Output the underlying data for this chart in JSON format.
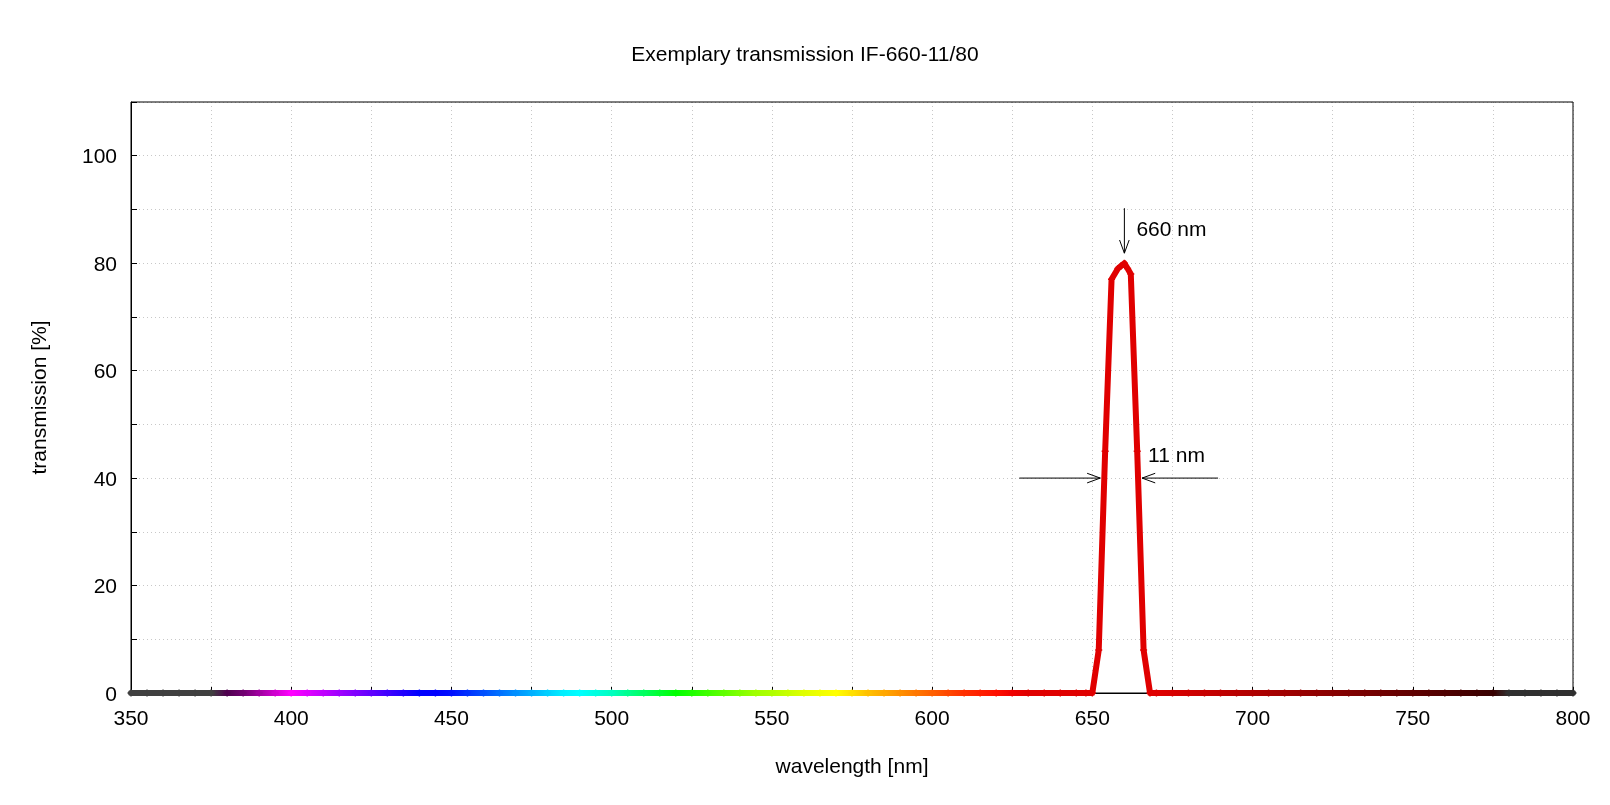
{
  "chart_data": {
    "type": "line",
    "title": "Exemplary transmission IF-660-11/80",
    "xlabel": "wavelength [nm]",
    "ylabel": "transmission [%]",
    "x": [
      350,
      355,
      360,
      365,
      370,
      375,
      380,
      385,
      390,
      395,
      400,
      405,
      410,
      415,
      420,
      425,
      430,
      435,
      440,
      445,
      450,
      455,
      460,
      465,
      470,
      475,
      480,
      485,
      490,
      495,
      500,
      505,
      510,
      515,
      520,
      525,
      530,
      535,
      540,
      545,
      550,
      555,
      560,
      565,
      570,
      575,
      580,
      585,
      590,
      595,
      600,
      605,
      610,
      615,
      620,
      625,
      630,
      635,
      640,
      645,
      648,
      650,
      652,
      654,
      656,
      658,
      659,
      660,
      661,
      662,
      664,
      666,
      668,
      670,
      675,
      680,
      685,
      690,
      695,
      700,
      705,
      710,
      715,
      720,
      725,
      730,
      735,
      740,
      745,
      750,
      755,
      760,
      765,
      770,
      775,
      780,
      785,
      790,
      795,
      800
    ],
    "series": [
      {
        "values": [
          0,
          0,
          0,
          0,
          0,
          0,
          0,
          0,
          0,
          0,
          0,
          0,
          0,
          0,
          0,
          0,
          0,
          0,
          0,
          0,
          0,
          0,
          0,
          0,
          0,
          0,
          0,
          0,
          0,
          0,
          0,
          0,
          0,
          0,
          0,
          0,
          0,
          0,
          0,
          0,
          0,
          0,
          0,
          0,
          0,
          0,
          0,
          0,
          0,
          0,
          0,
          0,
          0,
          0,
          0,
          0,
          0,
          0,
          0,
          0,
          0,
          0,
          8,
          45,
          77,
          79,
          79.5,
          80,
          79,
          78,
          45,
          8,
          0,
          0,
          0,
          0,
          0,
          0,
          0,
          0,
          0,
          0,
          0,
          0,
          0,
          0,
          0,
          0,
          0,
          0,
          0,
          0,
          0,
          0,
          0,
          0,
          0,
          0,
          0,
          0
        ],
        "colors": [
          "#404040",
          "#404040",
          "#404040",
          "#404040",
          "#404040",
          "#404040",
          "#500050",
          "#700070",
          "#a000a0",
          "#d000d0",
          "#ff00ff",
          "#e000ff",
          "#c000ff",
          "#a000ff",
          "#8000ff",
          "#6000ff",
          "#4000ff",
          "#2000ff",
          "#0000ff",
          "#0000ff",
          "#0010ff",
          "#0030ff",
          "#0050ff",
          "#0070ff",
          "#0090ff",
          "#00b0ff",
          "#00d0ff",
          "#00f0ff",
          "#00ffff",
          "#00ffe0",
          "#00ffc0",
          "#00ff90",
          "#00ff60",
          "#00ff30",
          "#00ff00",
          "#20ff00",
          "#40ff00",
          "#60ff00",
          "#80ff00",
          "#a0ff00",
          "#b0ff00",
          "#c8ff00",
          "#e0ff00",
          "#f0ff00",
          "#ffff00",
          "#ffe000",
          "#ffc000",
          "#ffa800",
          "#ff9000",
          "#ff7800",
          "#ff6000",
          "#ff4800",
          "#ff3000",
          "#ff2000",
          "#ff1000",
          "#f00000",
          "#e00000",
          "#e00000",
          "#e00000",
          "#e00000",
          "#e00000",
          "#e00000",
          "#e00000",
          "#e00000",
          "#e00000",
          "#e00000",
          "#e00000",
          "#e00000",
          "#e00000",
          "#e00000",
          "#e00000",
          "#e00000",
          "#e00000",
          "#e00000",
          "#d80000",
          "#d00000",
          "#c80000",
          "#c00000",
          "#b80000",
          "#b00000",
          "#a80000",
          "#a00000",
          "#980000",
          "#900000",
          "#880000",
          "#800000",
          "#780000",
          "#700000",
          "#680000",
          "#600000",
          "#580000",
          "#500000",
          "#480000",
          "#400000",
          "#380000",
          "#303030",
          "#303030",
          "#303030",
          "#303030",
          "#303030"
        ]
      }
    ],
    "xlim": [
      350,
      800
    ],
    "xticks": [
      350,
      400,
      450,
      500,
      550,
      600,
      650,
      700,
      750,
      800
    ],
    "ylim": [
      0,
      110
    ],
    "yticks": [
      0,
      20,
      40,
      60,
      80,
      100
    ],
    "grid": true,
    "marker": "cross",
    "annotations": [
      {
        "text": "660 nm",
        "x": 660,
        "y": 80
      },
      {
        "text": "11 nm",
        "x": 664,
        "y": 40
      }
    ]
  }
}
